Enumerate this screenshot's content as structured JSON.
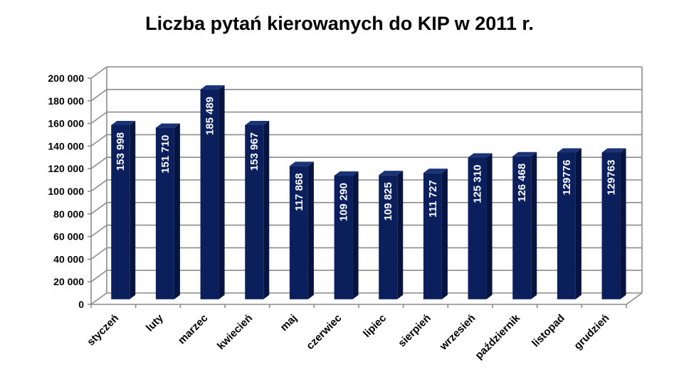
{
  "chart_data": {
    "type": "bar",
    "title": "Liczba pytań kierowanych do KIP w 2011 r.",
    "xlabel": "",
    "ylabel": "",
    "categories": [
      "styczeń",
      "luty",
      "marzec",
      "kwiecień",
      "maj",
      "czerwiec",
      "lipiec",
      "sierpień",
      "wrzesień",
      "październik",
      "listopad",
      "grudzień"
    ],
    "values": [
      153998,
      151710,
      185489,
      153967,
      117868,
      109290,
      109825,
      111727,
      125310,
      126468,
      129776,
      129763
    ],
    "data_labels": [
      "153 998",
      "151 710",
      "185 489",
      "153 967",
      "117 868",
      "109 290",
      "109 825",
      "111 727",
      "125 310",
      "126 468",
      "129776",
      "129763"
    ],
    "ylim": [
      0,
      200000
    ],
    "yticks": [
      0,
      20000,
      40000,
      60000,
      80000,
      100000,
      120000,
      140000,
      160000,
      180000,
      200000
    ],
    "ytick_labels": [
      "0",
      "20 000",
      "40 000",
      "60 000",
      "80 000",
      "100 000",
      "120 000",
      "140 000",
      "160 000",
      "180 000",
      "200 000"
    ],
    "grid": true,
    "legend": "none",
    "three_d": true,
    "bar_color": "#0a1f5c"
  }
}
